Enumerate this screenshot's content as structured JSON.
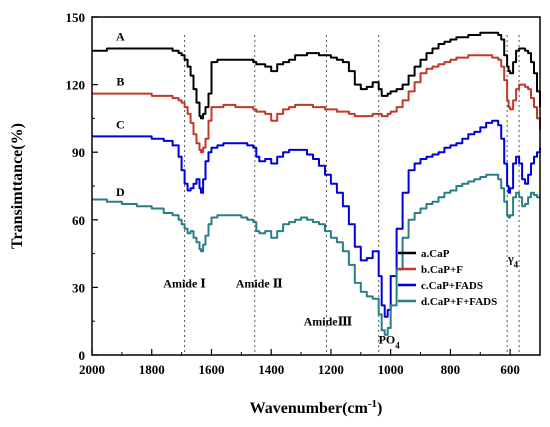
{
  "chart_data": {
    "type": "line",
    "xlabel": "Wavenumber(cm",
    "xlabel_sup": "-1",
    "xlabel_tail": ")",
    "ylabel": "Transimttance(%)",
    "xlim": [
      2000,
      500
    ],
    "ylim": [
      0,
      150
    ],
    "x_ticks": [
      2000,
      1800,
      1600,
      1400,
      1200,
      1000,
      800,
      600
    ],
    "y_ticks": [
      0,
      30,
      60,
      90,
      120,
      150
    ],
    "legend_position": "lower-right",
    "series": [
      {
        "name": "a.CaP",
        "tag": "A",
        "color": "#000000",
        "x": [
          2000,
          1950,
          1900,
          1850,
          1800,
          1760,
          1730,
          1710,
          1700,
          1690,
          1680,
          1670,
          1660,
          1650,
          1640,
          1635,
          1628,
          1620,
          1610,
          1600,
          1580,
          1560,
          1540,
          1520,
          1500,
          1480,
          1460,
          1450,
          1440,
          1420,
          1400,
          1380,
          1360,
          1340,
          1320,
          1300,
          1280,
          1260,
          1240,
          1220,
          1200,
          1180,
          1160,
          1140,
          1120,
          1100,
          1080,
          1060,
          1040,
          1030,
          1020,
          1010,
          1000,
          980,
          960,
          940,
          920,
          900,
          880,
          860,
          840,
          820,
          800,
          780,
          760,
          740,
          720,
          700,
          680,
          660,
          640,
          630,
          620,
          610,
          605,
          600,
          590,
          580,
          570,
          560,
          550,
          540,
          530,
          520,
          510,
          500
        ],
        "y": [
          135,
          136,
          136,
          136,
          136,
          136,
          135,
          134,
          133,
          131,
          128,
          124,
          118,
          112,
          106,
          105,
          107,
          110,
          116,
          130,
          131,
          131,
          131,
          131,
          131,
          131,
          130,
          129,
          129,
          128,
          126,
          129,
          130,
          131,
          133,
          133,
          134,
          134,
          133,
          133,
          132,
          131,
          130,
          126,
          120,
          118,
          119,
          121,
          118,
          115,
          115,
          116,
          117,
          118,
          120,
          124,
          128,
          131,
          134,
          136,
          138,
          139,
          140,
          141,
          141,
          142,
          142,
          143,
          143,
          143,
          142,
          140,
          133,
          128,
          126,
          125,
          130,
          135,
          136,
          136,
          135,
          134,
          130,
          125,
          117,
          110
        ]
      },
      {
        "name": "b.CaP+F",
        "tag": "B",
        "color": "#c0392b",
        "x": [
          2000,
          1950,
          1900,
          1850,
          1800,
          1760,
          1730,
          1710,
          1700,
          1690,
          1680,
          1670,
          1660,
          1650,
          1640,
          1635,
          1628,
          1620,
          1610,
          1600,
          1580,
          1560,
          1540,
          1520,
          1500,
          1480,
          1460,
          1450,
          1440,
          1420,
          1400,
          1380,
          1360,
          1340,
          1320,
          1300,
          1280,
          1260,
          1240,
          1220,
          1200,
          1180,
          1160,
          1140,
          1120,
          1100,
          1080,
          1060,
          1040,
          1030,
          1020,
          1010,
          1000,
          980,
          960,
          940,
          920,
          900,
          880,
          860,
          840,
          820,
          800,
          780,
          760,
          740,
          720,
          700,
          680,
          660,
          640,
          630,
          620,
          610,
          605,
          600,
          590,
          580,
          570,
          560,
          550,
          540,
          530,
          520,
          510,
          500
        ],
        "y": [
          116,
          116,
          116,
          116,
          115,
          115,
          114,
          113,
          112,
          110,
          107,
          103,
          98,
          94,
          91,
          90,
          92,
          96,
          104,
          110,
          110,
          111,
          111,
          110,
          110,
          110,
          109,
          108,
          108,
          107,
          104,
          107,
          109,
          110,
          111,
          111,
          111,
          110,
          110,
          109,
          109,
          108,
          108,
          107,
          106,
          106,
          106,
          107,
          107,
          106,
          106,
          107,
          108,
          110,
          113,
          117,
          121,
          125,
          127,
          128,
          129,
          130,
          131,
          132,
          132,
          133,
          133,
          133,
          133,
          132,
          131,
          128,
          122,
          113,
          110,
          109,
          113,
          118,
          120,
          120,
          119,
          118,
          114,
          110,
          105,
          100
        ]
      },
      {
        "name": "c.CaP+FADS",
        "tag": "C",
        "color": "#0000dd",
        "x": [
          2000,
          1950,
          1900,
          1850,
          1800,
          1760,
          1730,
          1710,
          1700,
          1690,
          1680,
          1670,
          1660,
          1650,
          1640,
          1635,
          1628,
          1620,
          1610,
          1600,
          1580,
          1560,
          1540,
          1520,
          1500,
          1480,
          1460,
          1450,
          1440,
          1420,
          1400,
          1380,
          1360,
          1340,
          1320,
          1300,
          1280,
          1260,
          1240,
          1220,
          1200,
          1180,
          1160,
          1140,
          1120,
          1100,
          1080,
          1060,
          1040,
          1030,
          1020,
          1010,
          1000,
          980,
          960,
          940,
          920,
          900,
          880,
          860,
          840,
          820,
          800,
          780,
          760,
          740,
          720,
          700,
          680,
          660,
          640,
          630,
          620,
          610,
          605,
          600,
          590,
          580,
          570,
          560,
          550,
          540,
          530,
          520,
          510,
          500
        ],
        "y": [
          97,
          97,
          97,
          97,
          96,
          95,
          93,
          88,
          82,
          76,
          73,
          74,
          76,
          78,
          74,
          72,
          78,
          86,
          90,
          92,
          93,
          94,
          94,
          94,
          94,
          93,
          92,
          88,
          86,
          87,
          85,
          88,
          90,
          91,
          91,
          91,
          89,
          87,
          84,
          80,
          76,
          72,
          66,
          58,
          48,
          42,
          43,
          46,
          35,
          22,
          17,
          20,
          35,
          56,
          72,
          82,
          85,
          87,
          88,
          89,
          90,
          92,
          93,
          94,
          96,
          98,
          99,
          101,
          103,
          104,
          102,
          96,
          85,
          75,
          72,
          74,
          85,
          88,
          85,
          78,
          76,
          80,
          85,
          88,
          90,
          92
        ]
      },
      {
        "name": "d.CaP+F+FADS",
        "tag": "D",
        "color": "#2a7f85",
        "x": [
          2000,
          1950,
          1900,
          1850,
          1800,
          1760,
          1730,
          1710,
          1700,
          1690,
          1680,
          1670,
          1660,
          1650,
          1640,
          1635,
          1628,
          1620,
          1610,
          1600,
          1580,
          1560,
          1540,
          1520,
          1500,
          1480,
          1460,
          1450,
          1440,
          1420,
          1400,
          1380,
          1360,
          1340,
          1320,
          1300,
          1280,
          1260,
          1240,
          1220,
          1200,
          1180,
          1160,
          1140,
          1120,
          1100,
          1080,
          1060,
          1040,
          1030,
          1020,
          1010,
          1000,
          980,
          960,
          940,
          920,
          900,
          880,
          860,
          840,
          820,
          800,
          780,
          760,
          740,
          720,
          700,
          680,
          660,
          640,
          630,
          620,
          610,
          605,
          600,
          590,
          580,
          570,
          560,
          550,
          540,
          530,
          520,
          510,
          500
        ],
        "y": [
          69,
          68,
          67,
          66,
          65,
          63,
          62,
          60,
          58,
          56,
          54,
          55,
          52,
          50,
          47,
          46,
          49,
          53,
          58,
          61,
          62,
          62,
          62,
          62,
          61,
          60,
          59,
          55,
          54,
          55,
          52,
          55,
          58,
          59,
          60,
          61,
          60,
          59,
          58,
          55,
          52,
          50,
          46,
          40,
          32,
          28,
          26,
          25,
          18,
          11,
          9,
          12,
          22,
          38,
          52,
          60,
          63,
          65,
          67,
          68,
          70,
          72,
          73,
          75,
          76,
          77,
          78,
          79,
          80,
          80,
          78,
          74,
          68,
          62,
          61,
          62,
          70,
          72,
          70,
          66,
          67,
          70,
          72,
          71,
          70,
          70
        ]
      }
    ],
    "vlines": [
      1690,
      1455,
      1215,
      1040,
      610,
      570
    ],
    "annotations": [
      {
        "text": "Amide Ⅰ",
        "x": 1690,
        "y": 30
      },
      {
        "text": "Amide Ⅱ",
        "x": 1440,
        "y": 30
      },
      {
        "text": "AmideⅢ",
        "x": 1210,
        "y": 13
      },
      {
        "text": "PO",
        "sub": "4",
        "x": 1005,
        "y": 5
      },
      {
        "text": "γ",
        "sub": "4",
        "x": 590,
        "y": 41
      }
    ]
  }
}
